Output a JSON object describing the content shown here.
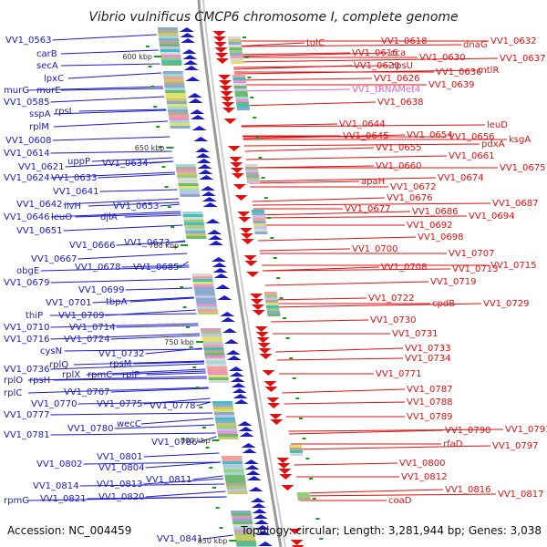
{
  "title": "Vibrio vulnificus CMCP6 chromosome I, complete genome",
  "footer": {
    "accession": "Accession: NC_004459",
    "topology": "Topology: circular; Length: 3,281,944 bp; Genes: 3,038"
  },
  "colors": {
    "left_strand": "#1a1acc",
    "right_strand": "#e01010",
    "highlight": "#e060c0",
    "backbone": "#9a9a9a",
    "tick": "#1a9a1a"
  },
  "position_markers": [
    "600 kbp",
    "650 kbp",
    "700 kbp",
    "750 kbp",
    "800 kbp",
    "850 kbp"
  ],
  "left_labels": [
    "VV1_0563",
    "carB",
    "secA",
    "lpxC",
    "murG",
    "murE",
    "VV1_0585",
    "sspA",
    "rpsI",
    "rplM",
    "VV1_0608",
    "VV1_0614",
    "VV1_0621",
    "uppP",
    "VV1_0634",
    "VV1_0624",
    "VV1_0633",
    "VV1_0641",
    "VV1_0642",
    "ilvH",
    "VV1_0653",
    "VV1_0646",
    "leuO",
    "djlA",
    "VV1_0651",
    "VV1_0666",
    "VV1_0673",
    "VV1_0667",
    "obgE",
    "VV1_0678",
    "VV1_0685",
    "VV1_0679",
    "VV1_0699",
    "VV1_0701",
    "tbpA",
    "thiP",
    "VV1_0709",
    "VV1_0710",
    "VV1_0714",
    "VV1_0716",
    "VV1_0724",
    "cysN",
    "VV1_0732",
    "rplQ",
    "rpsM",
    "VV1_0736",
    "rplO",
    "rpsH",
    "rplX",
    "rpmC",
    "rplP",
    "rplC",
    "VV1_0767",
    "VV1_0770",
    "VV1_0775",
    "VV1_0778",
    "VV1_0777",
    "wecC",
    "VV1_0780",
    "VV1_0781",
    "VV1_0786",
    "VV1_0801",
    "VV1_0802",
    "VV1_0804",
    "VV1_0811",
    "VV1_0814",
    "VV1_0813",
    "rpmG",
    "VV1_0821",
    "VV1_0820",
    "VV1_0841"
  ],
  "right_labels": [
    "tolC",
    "VV1_0616",
    "VV1_0618",
    "cca",
    "dnaG",
    "VV1_0632",
    "VV1_0620",
    "rpsU",
    "VV1_0630",
    "VV1_0637",
    "VV1_0626",
    "VV1_0636",
    "mtlR",
    "VV1_tRNAMet4",
    "VV1_0639",
    "VV1_0638",
    "VV1_0644",
    "VV1_0645",
    "VV1_0654",
    "leuD",
    "VV1_0656",
    "VV1_0655",
    "pdxA",
    "ksgA",
    "VV1_0661",
    "VV1_0660",
    "VV1_0675",
    "VV1_0674",
    "apaH",
    "VV1_0672",
    "VV1_0676",
    "VV1_0687",
    "VV1_0677",
    "VV1_0686",
    "VV1_0694",
    "VV1_0692",
    "VV1_0698",
    "VV1_0700",
    "VV1_0707",
    "VV1_0708",
    "VV1_0713",
    "VV1_0715",
    "VV1_0719",
    "VV1_0722",
    "cpdB",
    "VV1_0729",
    "VV1_0730",
    "VV1_0731",
    "VV1_0733",
    "VV1_0734",
    "VV1_0771",
    "VV1_0787",
    "VV1_0788",
    "VV1_0789",
    "VV1_0790",
    "VV1_0791",
    "rfaD",
    "VV1_0797",
    "VV1_0800",
    "VV1_0812",
    "VV1_0816",
    "VV1_0817",
    "coaD"
  ]
}
